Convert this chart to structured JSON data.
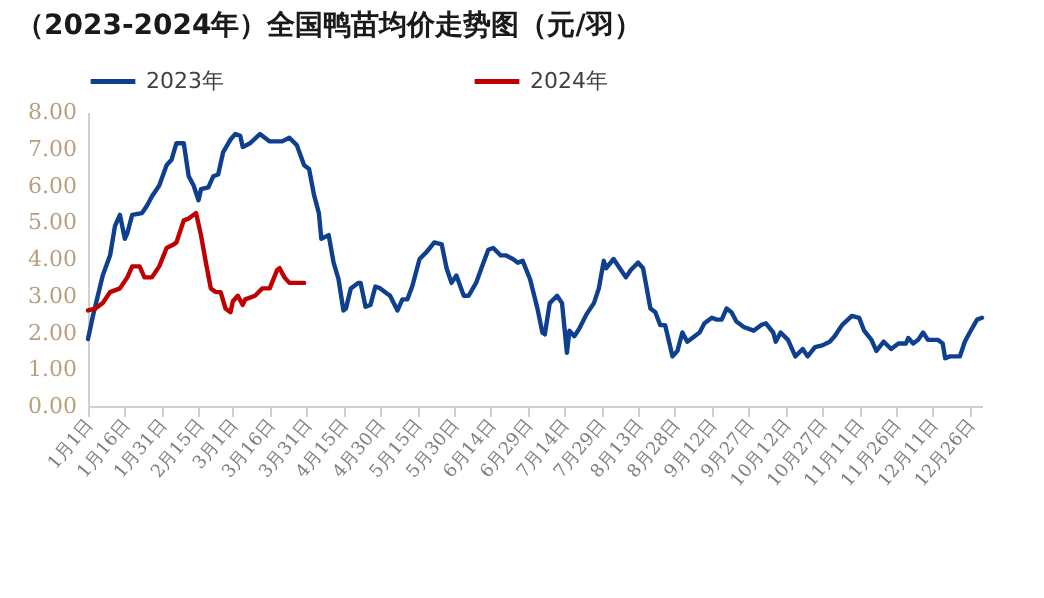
{
  "chart_data": {
    "type": "line",
    "title": "（2023-2024年）全国鸭苗均价走势图（元/羽）",
    "legend": "top",
    "line_style": "solid",
    "xlim": [
      "--01-01",
      "--12-31"
    ],
    "xticks": [
      {
        "value": "--01-01",
        "label": "1月1日"
      },
      {
        "value": "--01-16",
        "label": "1月16日"
      },
      {
        "value": "--01-31",
        "label": "1月31日"
      },
      {
        "value": "--02-15",
        "label": "2月15日"
      },
      {
        "value": "--03-01",
        "label": "3月1日"
      },
      {
        "value": "--03-16",
        "label": "3月16日"
      },
      {
        "value": "--03-31",
        "label": "3月31日"
      },
      {
        "value": "--04-15",
        "label": "4月15日"
      },
      {
        "value": "--04-30",
        "label": "4月30日"
      },
      {
        "value": "--05-15",
        "label": "5月15日"
      },
      {
        "value": "--05-30",
        "label": "5月30日"
      },
      {
        "value": "--06-14",
        "label": "6月14日"
      },
      {
        "value": "--06-29",
        "label": "6月29日"
      },
      {
        "value": "--07-14",
        "label": "7月14日"
      },
      {
        "value": "--07-29",
        "label": "7月29日"
      },
      {
        "value": "--08-13",
        "label": "8月13日"
      },
      {
        "value": "--08-28",
        "label": "8月28日"
      },
      {
        "value": "--09-12",
        "label": "9月12日"
      },
      {
        "value": "--09-27",
        "label": "9月27日"
      },
      {
        "value": "--10-12",
        "label": "10月12日"
      },
      {
        "value": "--10-27",
        "label": "10月27日"
      },
      {
        "value": "--11-11",
        "label": "11月11日"
      },
      {
        "value": "--11-26",
        "label": "11月26日"
      },
      {
        "value": "--12-11",
        "label": "12月11日"
      },
      {
        "value": "--12-26",
        "label": "12月26日"
      }
    ],
    "ylim": [
      0,
      8
    ],
    "yticks": [
      {
        "value": 0,
        "label": "0.00"
      },
      {
        "value": 1,
        "label": "1.00"
      },
      {
        "value": 2,
        "label": "2.00"
      },
      {
        "value": 3,
        "label": "3.00"
      },
      {
        "value": 4,
        "label": "4.00"
      },
      {
        "value": 5,
        "label": "5.00"
      },
      {
        "value": 6,
        "label": "6.00"
      },
      {
        "value": 7,
        "label": "7.00"
      },
      {
        "value": 8,
        "label": "8.00"
      }
    ],
    "series": [
      {
        "name": "2023年",
        "color": "#0f3f8f",
        "x": [
          "--01-01",
          "--01-03",
          "--01-07",
          "--01-10",
          "--01-12",
          "--01-14",
          "--01-16",
          "--01-17",
          "--01-19",
          "--01-23",
          "--01-25",
          "--01-27",
          "--01-30",
          "--02-02",
          "--02-04",
          "--02-06",
          "--02-09",
          "--02-11",
          "--02-13",
          "--02-15",
          "--02-16",
          "--02-19",
          "--02-21",
          "--02-23",
          "--02-25",
          "--02-28",
          "--03-02",
          "--03-04",
          "--03-05",
          "--03-08",
          "--03-12",
          "--03-16",
          "--03-21",
          "--03-24",
          "--03-27",
          "--03-30",
          "--04-01",
          "--04-03",
          "--04-05",
          "--04-06",
          "--04-09",
          "--04-11",
          "--04-13",
          "--04-15",
          "--04-16",
          "--04-18",
          "--04-21",
          "--04-22",
          "--04-24",
          "--04-26",
          "--04-28",
          "--04-30",
          "--05-03",
          "--05-04",
          "--05-07",
          "--05-09",
          "--05-11",
          "--05-13",
          "--05-16",
          "--05-19",
          "--05-22",
          "--05-25",
          "--05-27",
          "--05-29",
          "--05-31",
          "--06-03",
          "--06-05",
          "--06-08",
          "--06-11",
          "--06-13",
          "--06-15",
          "--06-18",
          "--06-20",
          "--06-23",
          "--06-25",
          "--06-27",
          "--06-30",
          "--07-03",
          "--07-05",
          "--07-06",
          "--07-08",
          "--07-11",
          "--07-13",
          "--07-15",
          "--07-16",
          "--07-18",
          "--07-20",
          "--07-23",
          "--07-26",
          "--07-28",
          "--07-30",
          "--07-31",
          "--08-03",
          "--08-06",
          "--08-08",
          "--08-10",
          "--08-13",
          "--08-15",
          "--08-18",
          "--08-20",
          "--08-22",
          "--08-24",
          "--08-27",
          "--08-29",
          "--08-31",
          "--09-02",
          "--09-05",
          "--09-07",
          "--09-09",
          "--09-12",
          "--09-14",
          "--09-16",
          "--09-18",
          "--09-20",
          "--09-22",
          "--09-25",
          "--09-29",
          "--10-02",
          "--10-04",
          "--10-07",
          "--10-08",
          "--10-10",
          "--10-13",
          "--10-16",
          "--10-19",
          "--10-21",
          "--10-24",
          "--10-27",
          "--10-30",
          "--11-01",
          "--11-04",
          "--11-08",
          "--11-11",
          "--11-13",
          "--11-16",
          "--11-18",
          "--11-21",
          "--11-24",
          "--11-27",
          "--11-30",
          "--12-01",
          "--12-03",
          "--12-05",
          "--12-07",
          "--12-09",
          "--12-13",
          "--12-15",
          "--12-16",
          "--12-18",
          "--12-22",
          "--12-24",
          "--12-26",
          "--12-29",
          "--12-31"
        ],
        "values": [
          1.82,
          2.45,
          3.55,
          4.1,
          4.9,
          5.2,
          4.55,
          4.7,
          5.2,
          5.25,
          5.45,
          5.7,
          6.0,
          6.55,
          6.7,
          7.15,
          7.15,
          6.25,
          6.0,
          5.6,
          5.9,
          5.95,
          6.25,
          6.3,
          6.9,
          7.25,
          7.4,
          7.35,
          7.05,
          7.15,
          7.4,
          7.2,
          7.2,
          7.3,
          7.1,
          6.55,
          6.45,
          5.75,
          5.25,
          4.55,
          4.65,
          3.9,
          3.45,
          2.6,
          2.65,
          3.2,
          3.35,
          3.35,
          2.7,
          2.75,
          3.25,
          3.2,
          3.05,
          3.0,
          2.6,
          2.9,
          2.9,
          3.25,
          4.0,
          4.2,
          4.45,
          4.4,
          3.75,
          3.35,
          3.55,
          3.0,
          3.0,
          3.35,
          3.9,
          4.25,
          4.3,
          4.1,
          4.1,
          4.0,
          3.9,
          3.95,
          3.45,
          2.65,
          2.0,
          1.95,
          2.8,
          3.0,
          2.8,
          1.45,
          2.05,
          1.9,
          2.1,
          2.5,
          2.8,
          3.2,
          3.95,
          3.75,
          4.0,
          3.7,
          3.5,
          3.7,
          3.9,
          3.75,
          2.65,
          2.55,
          2.2,
          2.2,
          1.35,
          1.5,
          2.0,
          1.75,
          1.9,
          2.0,
          2.25,
          2.4,
          2.35,
          2.35,
          2.65,
          2.55,
          2.3,
          2.15,
          2.05,
          2.2,
          2.25,
          2.0,
          1.75,
          2.0,
          1.8,
          1.35,
          1.55,
          1.35,
          1.6,
          1.65,
          1.75,
          1.9,
          2.2,
          2.45,
          2.4,
          2.05,
          1.8,
          1.5,
          1.75,
          1.55,
          1.7,
          1.7,
          1.85,
          1.7,
          1.8,
          2.0,
          1.8,
          1.8,
          1.7,
          1.3,
          1.35,
          1.35,
          1.75,
          2.0,
          2.35,
          2.4
        ]
      },
      {
        "name": "2024年",
        "color": "#c00000",
        "x": [
          "--01-01",
          "--01-04",
          "--01-07",
          "--01-10",
          "--01-14",
          "--01-17",
          "--01-19",
          "--01-22",
          "--01-24",
          "--01-27",
          "--01-30",
          "--02-02",
          "--02-05",
          "--02-06",
          "--02-09",
          "--02-11",
          "--02-14",
          "--02-16",
          "--02-18",
          "--02-20",
          "--02-22",
          "--02-24",
          "--02-26",
          "--02-28",
          "--03-01",
          "--03-03",
          "--03-05",
          "--03-06",
          "--03-10",
          "--03-13",
          "--03-16",
          "--03-19",
          "--03-20",
          "--03-22",
          "--03-24",
          "--03-30"
        ],
        "values": [
          2.6,
          2.65,
          2.8,
          3.1,
          3.2,
          3.5,
          3.8,
          3.8,
          3.5,
          3.5,
          3.8,
          4.3,
          4.4,
          4.45,
          5.05,
          5.1,
          5.25,
          4.65,
          3.9,
          3.2,
          3.1,
          3.1,
          2.65,
          2.55,
          2.85,
          3.0,
          2.75,
          2.9,
          3.0,
          3.2,
          3.2,
          3.7,
          3.75,
          3.5,
          3.35,
          3.35
        ]
      }
    ]
  }
}
